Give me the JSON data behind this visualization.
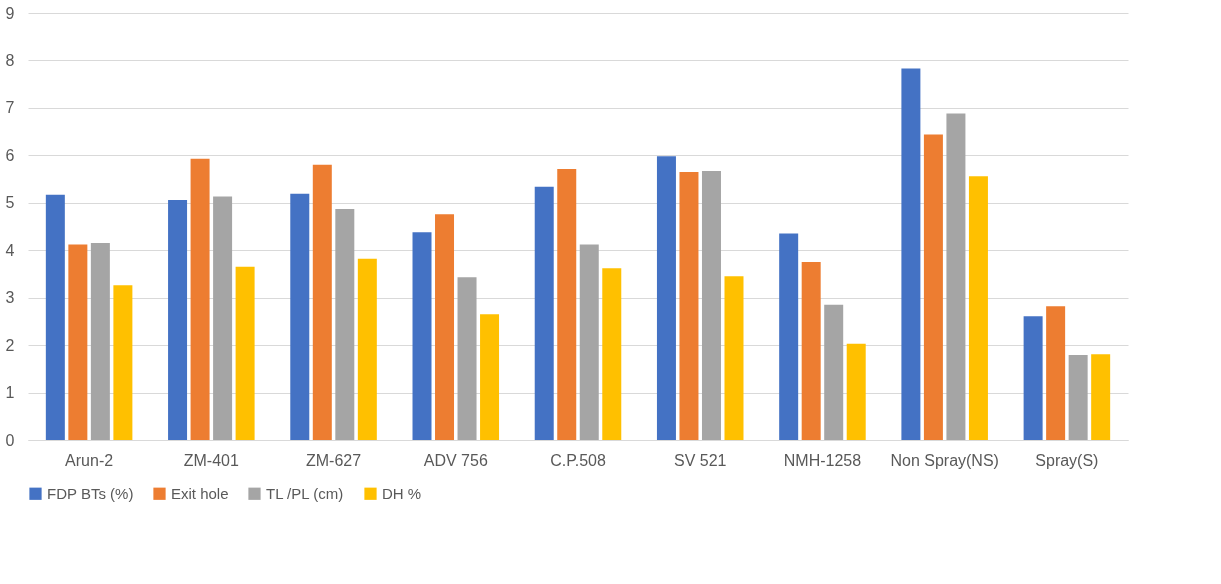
{
  "chart_data": {
    "type": "bar",
    "categories": [
      "Arun-2",
      "ZM-401",
      "ZM-627",
      "ADV 756",
      "C.P.508",
      "SV 521",
      "NMH-1258",
      "Non Spray(NS)",
      "Spray(S)"
    ],
    "series": [
      {
        "name": "FDP BTs (%)",
        "color": "#4472c4",
        "values": [
          5.17,
          5.06,
          5.19,
          4.38,
          5.34,
          5.98,
          4.35,
          7.83,
          2.61
        ]
      },
      {
        "name": "Exit hole",
        "color": "#ed7d31",
        "values": [
          4.12,
          5.93,
          5.8,
          4.76,
          5.71,
          5.65,
          3.75,
          6.44,
          2.82
        ]
      },
      {
        "name": "TL /PL (cm)",
        "color": "#a5a5a5",
        "values": [
          4.15,
          5.13,
          4.87,
          3.43,
          4.12,
          5.67,
          2.85,
          6.88,
          1.79
        ]
      },
      {
        "name": "DH %",
        "color": "#ffc000",
        "values": [
          3.26,
          3.65,
          3.82,
          2.65,
          3.62,
          3.45,
          2.03,
          5.56,
          1.81
        ]
      }
    ],
    "ylim": [
      0,
      9
    ],
    "yticks": [
      0,
      1,
      2,
      3,
      4,
      5,
      6,
      7,
      8,
      9
    ],
    "grid": "y",
    "legend": "bottom"
  }
}
